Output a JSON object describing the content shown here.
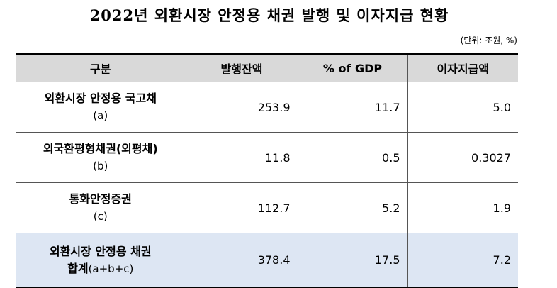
{
  "title": "2022년 외환시장 안정용 채권 발행 및 이자지급 현황",
  "unit": "(단위: 조원, %)",
  "table": {
    "header": [
      "구분",
      "발행잔액",
      "% of GDP",
      "이자지급액"
    ],
    "rows": [
      {
        "label": "외환시장 안정용 국고채",
        "note": "(a)",
        "values": [
          "253.9",
          "11.7",
          "5.0"
        ]
      },
      {
        "label": "외국환평형채권(외평채)",
        "note": "(b)",
        "values": [
          "11.8",
          "0.5",
          "0.3027"
        ]
      },
      {
        "label": "통화안정증권",
        "note": "(c)",
        "values": [
          "112.7",
          "5.2",
          "1.9"
        ]
      },
      {
        "label": "외환시장 안정용 채권",
        "total": "합계",
        "note": "(a+b+c)",
        "values": [
          "378.4",
          "17.5",
          "7.2"
        ]
      }
    ]
  }
}
